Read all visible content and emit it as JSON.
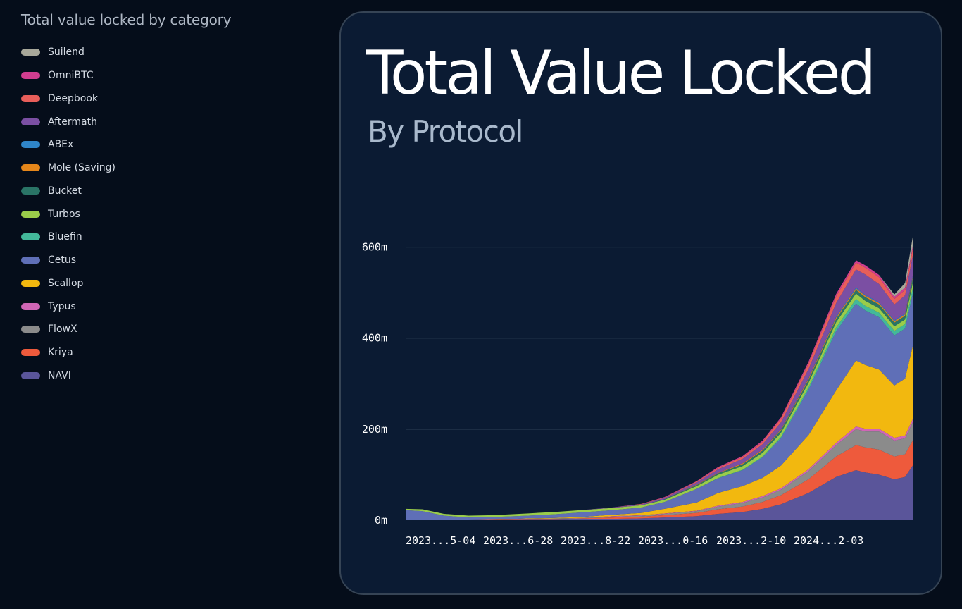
{
  "legend": {
    "title": "Total value locked by category",
    "items": [
      {
        "label": "Suilend",
        "color": "#a8a89a"
      },
      {
        "label": "OmniBTC",
        "color": "#d13d8f"
      },
      {
        "label": "Deepbook",
        "color": "#e85e5a"
      },
      {
        "label": "Aftermath",
        "color": "#7b4fa3"
      },
      {
        "label": "ABEx",
        "color": "#2f85c8"
      },
      {
        "label": "Mole (Saving)",
        "color": "#e5861a"
      },
      {
        "label": "Bucket",
        "color": "#2a7466"
      },
      {
        "label": "Turbos",
        "color": "#9acc4a"
      },
      {
        "label": "Bluefin",
        "color": "#43b89a"
      },
      {
        "label": "Cetus",
        "color": "#5f6fb7"
      },
      {
        "label": "Scallop",
        "color": "#f2b80f"
      },
      {
        "label": "Typus",
        "color": "#d066b6"
      },
      {
        "label": "FlowX",
        "color": "#8b8b8b"
      },
      {
        "label": "Kriya",
        "color": "#ee5a3c"
      },
      {
        "label": "NAVI",
        "color": "#5a559a"
      }
    ]
  },
  "card": {
    "title": "Total Value Locked",
    "subtitle": "By Protocol"
  },
  "chart_data": {
    "type": "area",
    "stacked": true,
    "title": "Total Value Locked",
    "subtitle": "By Protocol",
    "x": [
      "2023-04-09",
      "2023-04-20",
      "2023-05-04",
      "2023-05-20",
      "2023-06-05",
      "2023-06-28",
      "2023-07-15",
      "2023-08-01",
      "2023-08-22",
      "2023-09-10",
      "2023-09-25",
      "2023-10-16",
      "2023-10-30",
      "2023-11-15",
      "2023-11-28",
      "2023-12-10",
      "2023-12-28",
      "2024-01-15",
      "2024-01-28",
      "2024-02-03",
      "2024-02-12",
      "2024-02-22",
      "2024-02-29",
      "2024-03-05"
    ],
    "x_tick_labels": [
      "2023...5-04",
      "2023...6-28",
      "2023...8-22",
      "2023...0-16",
      "2023...2-10",
      "2024...2-03"
    ],
    "y_tick_labels": [
      "0m",
      "200m",
      "400m",
      "600m"
    ],
    "ylim": [
      0,
      700
    ],
    "grid": true,
    "series": [
      {
        "name": "NAVI",
        "values": [
          0,
          0,
          0,
          0,
          0,
          1,
          1,
          2,
          3,
          4,
          6,
          9,
          14,
          18,
          25,
          35,
          60,
          95,
          110,
          105,
          100,
          90,
          95,
          120
        ]
      },
      {
        "name": "Kriya",
        "values": [
          0,
          0,
          0,
          0,
          1,
          1,
          2,
          2,
          3,
          4,
          5,
          7,
          10,
          12,
          15,
          20,
          30,
          45,
          55,
          55,
          55,
          50,
          50,
          55
        ]
      },
      {
        "name": "FlowX",
        "values": [
          0,
          0,
          0,
          0,
          0,
          1,
          1,
          1,
          2,
          2,
          3,
          4,
          6,
          8,
          10,
          12,
          18,
          25,
          35,
          35,
          40,
          35,
          35,
          40
        ]
      },
      {
        "name": "Typus",
        "values": [
          0,
          0,
          0,
          0,
          0,
          0,
          0,
          0,
          1,
          1,
          1,
          1,
          2,
          2,
          3,
          3,
          4,
          5,
          6,
          6,
          6,
          6,
          6,
          7
        ]
      },
      {
        "name": "Scallop",
        "values": [
          0,
          0,
          0,
          0,
          0,
          1,
          1,
          2,
          3,
          5,
          10,
          18,
          28,
          35,
          40,
          50,
          75,
          115,
          145,
          140,
          130,
          115,
          125,
          160
        ]
      },
      {
        "name": "Cetus",
        "values": [
          22,
          20,
          10,
          6,
          6,
          6,
          8,
          10,
          10,
          12,
          15,
          30,
          32,
          35,
          45,
          60,
          100,
          130,
          125,
          120,
          115,
          110,
          110,
          115
        ]
      },
      {
        "name": "Bluefin",
        "values": [
          0,
          0,
          0,
          0,
          0,
          0,
          0,
          0,
          0,
          0,
          0,
          0,
          1,
          1,
          2,
          3,
          5,
          8,
          10,
          10,
          10,
          10,
          10,
          12
        ]
      },
      {
        "name": "Turbos",
        "values": [
          3,
          4,
          4,
          4,
          4,
          5,
          5,
          5,
          5,
          5,
          5,
          6,
          7,
          8,
          8,
          9,
          10,
          12,
          12,
          11,
          10,
          10,
          10,
          12
        ]
      },
      {
        "name": "Bucket",
        "values": [
          0,
          0,
          0,
          0,
          0,
          0,
          0,
          0,
          0,
          0,
          1,
          2,
          3,
          4,
          5,
          5,
          6,
          7,
          8,
          8,
          8,
          8,
          8,
          9
        ]
      },
      {
        "name": "Mole (Saving)",
        "values": [
          0,
          0,
          0,
          0,
          0,
          0,
          0,
          0,
          0,
          0,
          0,
          1,
          1,
          2,
          2,
          2,
          3,
          3,
          3,
          3,
          3,
          3,
          3,
          3
        ]
      },
      {
        "name": "ABEx",
        "values": [
          0,
          0,
          0,
          0,
          0,
          0,
          0,
          0,
          0,
          0,
          0,
          0,
          0,
          0,
          0,
          1,
          1,
          2,
          2,
          2,
          2,
          2,
          2,
          3
        ]
      },
      {
        "name": "Aftermath",
        "values": [
          0,
          0,
          0,
          0,
          0,
          0,
          0,
          0,
          1,
          2,
          3,
          5,
          8,
          10,
          12,
          15,
          20,
          30,
          40,
          45,
          40,
          35,
          40,
          45
        ]
      },
      {
        "name": "Deepbook",
        "values": [
          0,
          0,
          0,
          0,
          0,
          0,
          0,
          0,
          0,
          1,
          1,
          2,
          3,
          4,
          5,
          8,
          12,
          15,
          15,
          15,
          15,
          12,
          12,
          15
        ]
      },
      {
        "name": "OmniBTC",
        "values": [
          0,
          0,
          0,
          0,
          0,
          0,
          0,
          0,
          0,
          0,
          1,
          1,
          2,
          2,
          3,
          3,
          4,
          5,
          5,
          5,
          5,
          5,
          5,
          6
        ]
      },
      {
        "name": "Suilend",
        "values": [
          0,
          0,
          0,
          0,
          0,
          0,
          0,
          0,
          0,
          0,
          0,
          0,
          0,
          0,
          0,
          0,
          0,
          0,
          0,
          0,
          0,
          5,
          10,
          20
        ]
      }
    ]
  }
}
